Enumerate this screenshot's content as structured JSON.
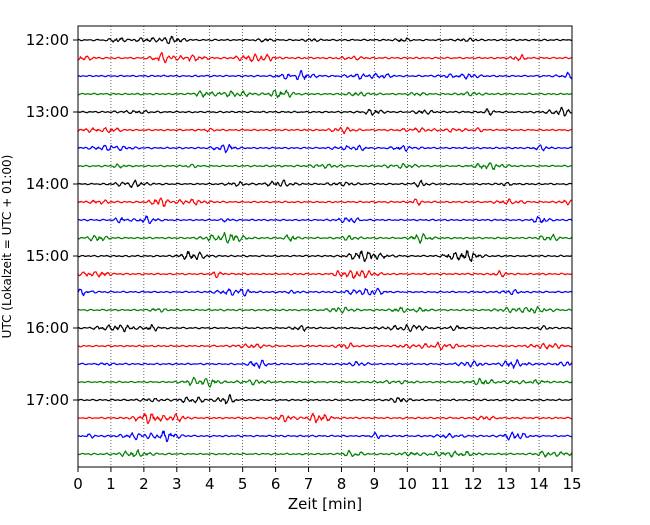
{
  "chart_data": {
    "type": "line",
    "title": "",
    "xlabel": "Zeit  [min]",
    "ylabel": "UTC (Lokalzeit = UTC + 01:00)",
    "xlim": [
      0,
      15
    ],
    "x_ticks": [
      "0",
      "1",
      "2",
      "3",
      "4",
      "5",
      "6",
      "7",
      "8",
      "9",
      "10",
      "11",
      "12",
      "13",
      "14",
      "15"
    ],
    "y_ticks": [
      "12:00",
      "13:00",
      "14:00",
      "15:00",
      "16:00",
      "17:00"
    ],
    "grid": "vertical dotted",
    "trace_interval_minutes": 15,
    "trace_start": "12:00",
    "trace_count": 24,
    "trace_colors": [
      "#000000",
      "#ff0000",
      "#0000ff",
      "#008000"
    ]
  }
}
